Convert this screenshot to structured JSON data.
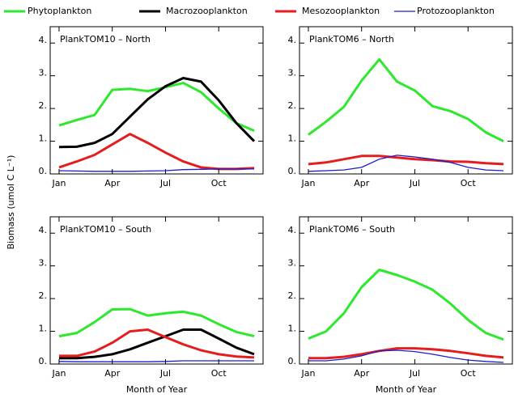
{
  "ylabel": "Biomass (umol C L⁻¹)",
  "chart_data": [
    {
      "type": "line",
      "title": "PlankTOM10 – North",
      "x": [
        1,
        2,
        3,
        4,
        5,
        6,
        7,
        8,
        9,
        10,
        11,
        12
      ],
      "xlim": [
        0.5,
        12.5
      ],
      "xticks": [
        {
          "value": 1,
          "label": "Jan"
        },
        {
          "value": 4,
          "label": "Apr"
        },
        {
          "value": 7,
          "label": "Jul"
        },
        {
          "value": 10,
          "label": "Oct"
        }
      ],
      "ylim": [
        0,
        4.5
      ],
      "yticks": [
        {
          "value": 0,
          "label": "0."
        },
        {
          "value": 1,
          "label": "1."
        },
        {
          "value": 2,
          "label": "2."
        },
        {
          "value": 3,
          "label": "3."
        },
        {
          "value": 4,
          "label": "4."
        }
      ],
      "series": [
        {
          "name": "Phytoplankton",
          "color": "#2ee82e",
          "line_width": 3,
          "values": [
            1.48,
            1.65,
            1.8,
            2.57,
            2.6,
            2.53,
            2.65,
            2.78,
            2.5,
            2.0,
            1.55,
            1.32
          ]
        },
        {
          "name": "Macrozooplankton",
          "color": "#000000",
          "line_width": 3,
          "values": [
            0.82,
            0.83,
            0.95,
            1.22,
            1.75,
            2.28,
            2.68,
            2.93,
            2.82,
            2.25,
            1.55,
            1.0
          ]
        },
        {
          "name": "Mesozooplankton",
          "color": "#e41e1e",
          "line_width": 3,
          "values": [
            0.2,
            0.38,
            0.58,
            0.9,
            1.22,
            0.95,
            0.65,
            0.38,
            0.2,
            0.15,
            0.15,
            0.18
          ]
        },
        {
          "name": "Protozooplankton",
          "color": "#1c1ccc",
          "line_width": 1.3,
          "values": [
            0.1,
            0.09,
            0.08,
            0.08,
            0.08,
            0.09,
            0.1,
            0.13,
            0.14,
            0.15,
            0.15,
            0.15
          ]
        }
      ]
    },
    {
      "type": "line",
      "title": "PlankTOM6 – North",
      "x": [
        1,
        2,
        3,
        4,
        5,
        6,
        7,
        8,
        9,
        10,
        11,
        12
      ],
      "xlim": [
        0.5,
        12.5
      ],
      "xticks": [
        {
          "value": 1,
          "label": "Jan"
        },
        {
          "value": 4,
          "label": "Apr"
        },
        {
          "value": 7,
          "label": "Jul"
        },
        {
          "value": 10,
          "label": "Oct"
        }
      ],
      "ylim": [
        0,
        4.5
      ],
      "yticks": [
        {
          "value": 0,
          "label": "0."
        },
        {
          "value": 1,
          "label": "1."
        },
        {
          "value": 2,
          "label": "2."
        },
        {
          "value": 3,
          "label": "3."
        },
        {
          "value": 4,
          "label": "4."
        }
      ],
      "series": [
        {
          "name": "Phytoplankton",
          "color": "#2ee82e",
          "line_width": 3,
          "values": [
            1.2,
            1.6,
            2.05,
            2.85,
            3.5,
            2.82,
            2.55,
            2.07,
            1.92,
            1.68,
            1.27,
            1.0
          ]
        },
        {
          "name": "Mesozooplankton",
          "color": "#e41e1e",
          "line_width": 3,
          "values": [
            0.3,
            0.35,
            0.45,
            0.55,
            0.55,
            0.5,
            0.45,
            0.42,
            0.38,
            0.37,
            0.33,
            0.3
          ]
        },
        {
          "name": "Protozooplankton",
          "color": "#1c1ccc",
          "line_width": 1.3,
          "values": [
            0.08,
            0.1,
            0.12,
            0.2,
            0.45,
            0.57,
            0.52,
            0.45,
            0.35,
            0.2,
            0.12,
            0.1
          ]
        }
      ]
    },
    {
      "type": "line",
      "title": "PlankTOM10 – South",
      "xlabel": "Month of Year",
      "x": [
        1,
        2,
        3,
        4,
        5,
        6,
        7,
        8,
        9,
        10,
        11,
        12
      ],
      "xlim": [
        0.5,
        12.5
      ],
      "xticks": [
        {
          "value": 1,
          "label": "Jan"
        },
        {
          "value": 4,
          "label": "Apr"
        },
        {
          "value": 7,
          "label": "Jul"
        },
        {
          "value": 10,
          "label": "Oct"
        }
      ],
      "ylim": [
        0,
        4.5
      ],
      "yticks": [
        {
          "value": 0,
          "label": "0."
        },
        {
          "value": 1,
          "label": "1."
        },
        {
          "value": 2,
          "label": "2."
        },
        {
          "value": 3,
          "label": "3."
        },
        {
          "value": 4,
          "label": "4."
        }
      ],
      "series": [
        {
          "name": "Phytoplankton",
          "color": "#2ee82e",
          "line_width": 3,
          "values": [
            0.85,
            0.95,
            1.28,
            1.67,
            1.68,
            1.48,
            1.55,
            1.6,
            1.48,
            1.22,
            0.98,
            0.85
          ]
        },
        {
          "name": "Macrozooplankton",
          "color": "#000000",
          "line_width": 3,
          "values": [
            0.18,
            0.18,
            0.22,
            0.3,
            0.45,
            0.65,
            0.85,
            1.05,
            1.05,
            0.78,
            0.5,
            0.3
          ]
        },
        {
          "name": "Mesozooplankton",
          "color": "#e41e1e",
          "line_width": 3,
          "values": [
            0.25,
            0.25,
            0.38,
            0.65,
            1.0,
            1.05,
            0.82,
            0.6,
            0.42,
            0.3,
            0.23,
            0.2
          ]
        },
        {
          "name": "Protozooplankton",
          "color": "#1c1ccc",
          "line_width": 1.3,
          "values": [
            0.08,
            0.07,
            0.07,
            0.07,
            0.07,
            0.07,
            0.08,
            0.1,
            0.1,
            0.1,
            0.1,
            0.1
          ]
        }
      ]
    },
    {
      "type": "line",
      "title": "PlankTOM6 – South",
      "xlabel": "Month of Year",
      "x": [
        1,
        2,
        3,
        4,
        5,
        6,
        7,
        8,
        9,
        10,
        11,
        12
      ],
      "xlim": [
        0.5,
        12.5
      ],
      "xticks": [
        {
          "value": 1,
          "label": "Jan"
        },
        {
          "value": 4,
          "label": "Apr"
        },
        {
          "value": 7,
          "label": "Jul"
        },
        {
          "value": 10,
          "label": "Oct"
        }
      ],
      "ylim": [
        0,
        4.5
      ],
      "yticks": [
        {
          "value": 0,
          "label": "0."
        },
        {
          "value": 1,
          "label": "1."
        },
        {
          "value": 2,
          "label": "2."
        },
        {
          "value": 3,
          "label": "3."
        },
        {
          "value": 4,
          "label": "4."
        }
      ],
      "series": [
        {
          "name": "Phytoplankton",
          "color": "#2ee82e",
          "line_width": 3,
          "values": [
            0.78,
            1.0,
            1.55,
            2.35,
            2.88,
            2.72,
            2.52,
            2.27,
            1.85,
            1.35,
            0.95,
            0.75
          ]
        },
        {
          "name": "Mesozooplankton",
          "color": "#e41e1e",
          "line_width": 3,
          "values": [
            0.18,
            0.18,
            0.22,
            0.3,
            0.4,
            0.48,
            0.48,
            0.45,
            0.4,
            0.33,
            0.25,
            0.2
          ]
        },
        {
          "name": "Protozooplankton",
          "color": "#1c1ccc",
          "line_width": 1.3,
          "values": [
            0.1,
            0.1,
            0.15,
            0.25,
            0.4,
            0.42,
            0.38,
            0.3,
            0.2,
            0.12,
            0.08,
            0.05
          ]
        }
      ]
    }
  ]
}
